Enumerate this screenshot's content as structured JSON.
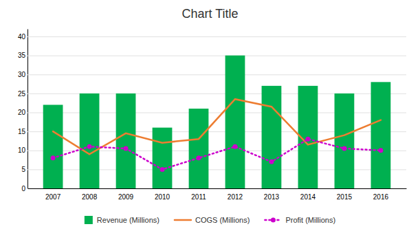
{
  "chart_data": {
    "type": "bar",
    "title": "Chart Title",
    "categories": [
      "2007",
      "2008",
      "2009",
      "2010",
      "2011",
      "2012",
      "2013",
      "2014",
      "2015",
      "2016"
    ],
    "series": [
      {
        "name": "Revenue (Millions)",
        "type": "bar",
        "color": "#00b050",
        "values": [
          22,
          25,
          25,
          16,
          21,
          35,
          27,
          27,
          25,
          28
        ]
      },
      {
        "name": "COGS (Millions)",
        "type": "line",
        "color": "#ed7d31",
        "line_style": "solid",
        "values": [
          15,
          9,
          14.5,
          12,
          13,
          23.5,
          21.5,
          11.5,
          14,
          18
        ]
      },
      {
        "name": "Profit (Millions)",
        "type": "line",
        "color": "#cc00cc",
        "line_style": "dotted",
        "marker": "circle",
        "values": [
          8,
          11,
          10.5,
          5,
          8,
          11,
          7,
          13,
          10.5,
          10
        ]
      }
    ],
    "ylim": [
      0,
      42
    ],
    "yticks": [
      0,
      5,
      10,
      15,
      20,
      25,
      30,
      35,
      40
    ],
    "grid": true,
    "legend": "bottom"
  }
}
